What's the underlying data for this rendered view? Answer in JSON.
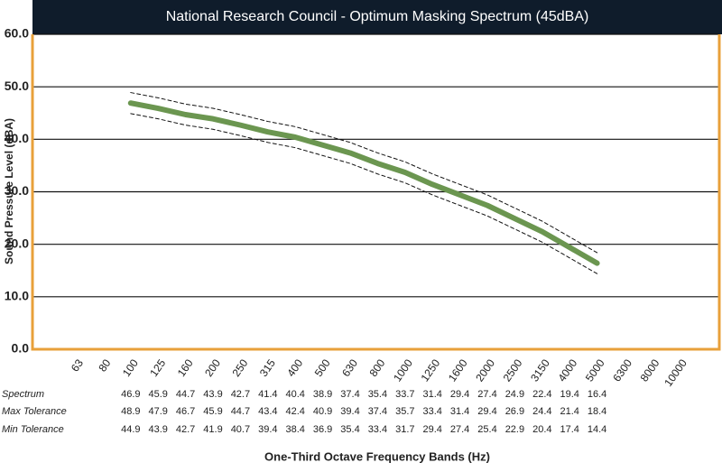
{
  "chart_data": {
    "type": "line",
    "title": "National Research Council - Optimum Masking Spectrum (45dBA)",
    "y_label": "Sound Pressure Level (dBA)",
    "x_label": "One-Third Octave Frequency Bands (Hz)",
    "categories": [
      "63",
      "80",
      "100",
      "125",
      "160",
      "200",
      "250",
      "315",
      "400",
      "500",
      "630",
      "800",
      "1000",
      "1250",
      "1600",
      "2000",
      "2500",
      "3150",
      "4000",
      "5000",
      "6300",
      "8000",
      "10000"
    ],
    "series": [
      {
        "name": "Spectrum",
        "color": "#6b9650",
        "values": [
          null,
          null,
          46.9,
          45.9,
          44.7,
          43.9,
          42.7,
          41.4,
          40.4,
          38.9,
          37.4,
          35.4,
          33.7,
          31.4,
          29.4,
          27.4,
          24.9,
          22.4,
          19.4,
          16.4,
          null,
          null,
          null
        ]
      },
      {
        "name": "Max Tolerance",
        "color": "#111111",
        "values": [
          null,
          null,
          48.9,
          47.9,
          46.7,
          45.9,
          44.7,
          43.4,
          42.4,
          40.9,
          39.4,
          37.4,
          35.7,
          33.4,
          31.4,
          29.4,
          26.9,
          24.4,
          21.4,
          18.4,
          null,
          null,
          null
        ]
      },
      {
        "name": "Min Tolerance",
        "color": "#111111",
        "values": [
          null,
          null,
          44.9,
          43.9,
          42.7,
          41.9,
          40.7,
          39.4,
          38.4,
          36.9,
          35.4,
          33.4,
          31.7,
          29.4,
          27.4,
          25.4,
          22.9,
          20.4,
          17.4,
          14.4,
          null,
          null,
          null
        ]
      }
    ],
    "ylim": [
      0,
      60
    ],
    "yticks": [
      {
        "value": 0,
        "label": "0.0"
      },
      {
        "value": 10,
        "label": "10.0"
      },
      {
        "value": 20,
        "label": "20.0"
      },
      {
        "value": 30,
        "label": "30.0"
      },
      {
        "value": 40,
        "label": "40.0"
      },
      {
        "value": 50,
        "label": "50.0"
      },
      {
        "value": 60,
        "label": "60.0"
      }
    ],
    "grid": true
  }
}
